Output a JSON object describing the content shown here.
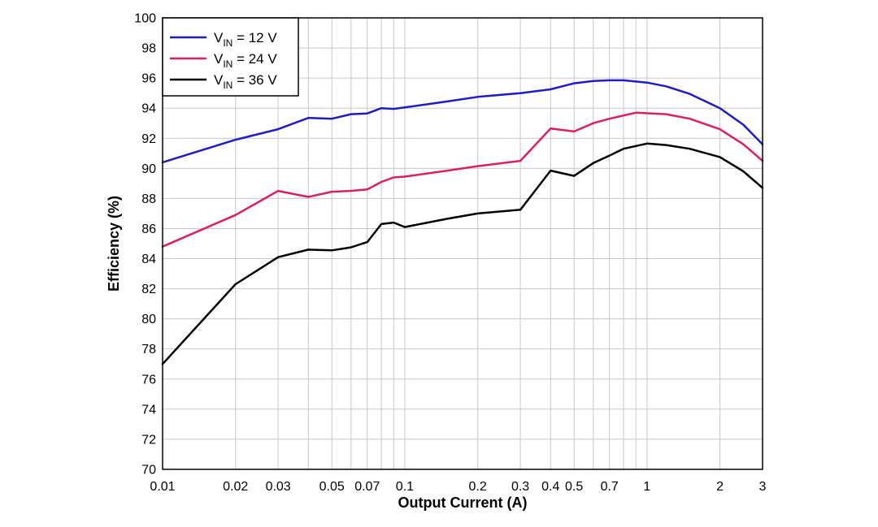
{
  "chart_data": {
    "type": "line",
    "title": "",
    "xlabel": "Output Current (A)",
    "ylabel": "Efficiency (%)",
    "x_scale": "log",
    "xlim": [
      0.01,
      3
    ],
    "ylim": [
      70,
      100
    ],
    "x_ticks": [
      0.01,
      0.02,
      0.03,
      0.05,
      0.07,
      0.1,
      0.2,
      0.3,
      0.4,
      0.5,
      0.7,
      1,
      2,
      3
    ],
    "x_tick_labels": [
      "0.01",
      "0.02",
      "0.03",
      "0.05",
      "0.07",
      "0.1",
      "0.2",
      "0.3",
      "0.4",
      "0.5",
      "0.7",
      "1",
      "2",
      "3"
    ],
    "y_ticks": [
      70,
      72,
      74,
      76,
      78,
      80,
      82,
      84,
      86,
      88,
      90,
      92,
      94,
      96,
      98,
      100
    ],
    "grid": true,
    "legend_position": "top-left",
    "series": [
      {
        "name_main": "V",
        "name_sub": "IN",
        "name_rest": " = 12 V",
        "color": "#1c1ccc",
        "points": [
          [
            0.01,
            90.4
          ],
          [
            0.02,
            91.9
          ],
          [
            0.03,
            92.6
          ],
          [
            0.04,
            93.35
          ],
          [
            0.05,
            93.3
          ],
          [
            0.06,
            93.6
          ],
          [
            0.07,
            93.65
          ],
          [
            0.08,
            94.0
          ],
          [
            0.09,
            93.95
          ],
          [
            0.1,
            94.05
          ],
          [
            0.15,
            94.45
          ],
          [
            0.2,
            94.75
          ],
          [
            0.3,
            95.0
          ],
          [
            0.4,
            95.25
          ],
          [
            0.5,
            95.65
          ],
          [
            0.6,
            95.8
          ],
          [
            0.7,
            95.85
          ],
          [
            0.8,
            95.85
          ],
          [
            1.0,
            95.7
          ],
          [
            1.2,
            95.45
          ],
          [
            1.5,
            94.95
          ],
          [
            2.0,
            94.0
          ],
          [
            2.5,
            92.9
          ],
          [
            3.0,
            91.6
          ]
        ]
      },
      {
        "name_main": "V",
        "name_sub": "IN",
        "name_rest": " = 24 V",
        "color": "#e01e5a",
        "points": [
          [
            0.01,
            84.8
          ],
          [
            0.02,
            86.9
          ],
          [
            0.03,
            88.5
          ],
          [
            0.04,
            88.1
          ],
          [
            0.05,
            88.45
          ],
          [
            0.06,
            88.5
          ],
          [
            0.07,
            88.6
          ],
          [
            0.08,
            89.1
          ],
          [
            0.09,
            89.4
          ],
          [
            0.1,
            89.45
          ],
          [
            0.15,
            89.85
          ],
          [
            0.2,
            90.15
          ],
          [
            0.3,
            90.5
          ],
          [
            0.4,
            92.65
          ],
          [
            0.5,
            92.45
          ],
          [
            0.6,
            93.0
          ],
          [
            0.7,
            93.3
          ],
          [
            0.9,
            93.7
          ],
          [
            1.2,
            93.6
          ],
          [
            1.5,
            93.3
          ],
          [
            2.0,
            92.6
          ],
          [
            2.5,
            91.6
          ],
          [
            3.0,
            90.5
          ]
        ]
      },
      {
        "name_main": "V",
        "name_sub": "IN",
        "name_rest": " = 36 V",
        "color": "#000000",
        "points": [
          [
            0.01,
            77.0
          ],
          [
            0.02,
            82.3
          ],
          [
            0.03,
            84.1
          ],
          [
            0.04,
            84.6
          ],
          [
            0.05,
            84.55
          ],
          [
            0.06,
            84.75
          ],
          [
            0.07,
            85.1
          ],
          [
            0.08,
            86.3
          ],
          [
            0.09,
            86.4
          ],
          [
            0.1,
            86.1
          ],
          [
            0.15,
            86.65
          ],
          [
            0.2,
            87.0
          ],
          [
            0.3,
            87.25
          ],
          [
            0.4,
            89.85
          ],
          [
            0.5,
            89.5
          ],
          [
            0.6,
            90.35
          ],
          [
            0.7,
            90.85
          ],
          [
            0.8,
            91.3
          ],
          [
            1.0,
            91.65
          ],
          [
            1.2,
            91.55
          ],
          [
            1.5,
            91.3
          ],
          [
            2.0,
            90.75
          ],
          [
            2.5,
            89.8
          ],
          [
            3.0,
            88.7
          ]
        ]
      }
    ]
  }
}
